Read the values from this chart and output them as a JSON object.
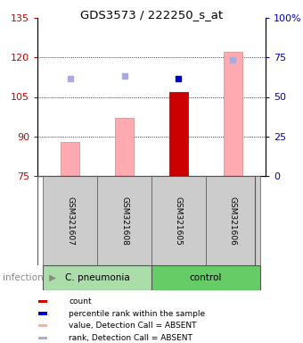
{
  "title": "GDS3573 / 222250_s_at",
  "samples": [
    "GSM321607",
    "GSM321608",
    "GSM321605",
    "GSM321606"
  ],
  "bar_values": [
    88,
    97,
    107,
    122
  ],
  "bar_colors": [
    "#ffaab0",
    "#ffaab0",
    "#cc0000",
    "#ffaab0"
  ],
  "rank_values": [
    112,
    113,
    112,
    119
  ],
  "rank_colors": [
    "#aaaadd",
    "#aaaadd",
    "#0000cc",
    "#aaaadd"
  ],
  "ylim_left": [
    75,
    135
  ],
  "ylim_right": [
    0,
    100
  ],
  "yticks_left": [
    75,
    90,
    105,
    120,
    135
  ],
  "yticks_right": [
    0,
    25,
    50,
    75,
    100
  ],
  "ytick_labels_right": [
    "0",
    "25",
    "50",
    "75",
    "100%"
  ],
  "legend_items": [
    {
      "color": "#cc0000",
      "label": "count"
    },
    {
      "color": "#0000cc",
      "label": "percentile rank within the sample"
    },
    {
      "color": "#ffaab0",
      "label": "value, Detection Call = ABSENT"
    },
    {
      "color": "#aaaadd",
      "label": "rank, Detection Call = ABSENT"
    }
  ],
  "left_axis_color": "#cc0000",
  "right_axis_color": "#0000bb",
  "bg_color": "#ffffff",
  "bar_bottom": 75,
  "bar_width": 0.35,
  "marker_size": 5,
  "sample_box_color": "#cccccc",
  "group1_color": "#aaddaa",
  "group2_color": "#66cc66",
  "infection_color": "#888888"
}
